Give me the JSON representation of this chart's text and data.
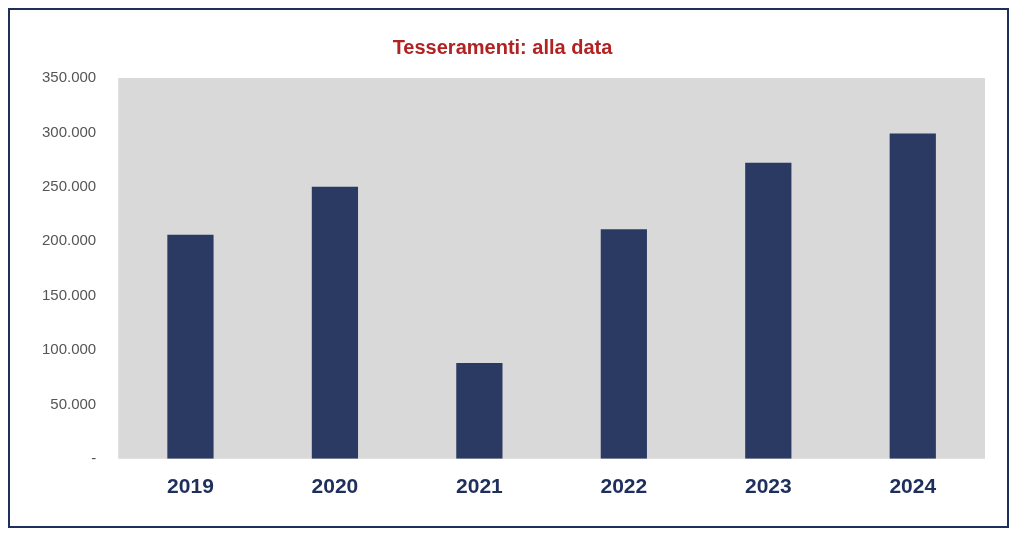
{
  "chart_data": {
    "type": "bar",
    "title": "Tesseramenti: alla data",
    "categories": [
      "2019",
      "2020",
      "2021",
      "2022",
      "2023",
      "2024"
    ],
    "values": [
      206000,
      250000,
      88000,
      211000,
      272000,
      299000
    ],
    "color": "#2b3a63",
    "ylim": [
      0,
      350000
    ],
    "yticks": [
      {
        "value": 0,
        "label": "-"
      },
      {
        "value": 50000,
        "label": "50.000"
      },
      {
        "value": 100000,
        "label": "100.000"
      },
      {
        "value": 150000,
        "label": "150.000"
      },
      {
        "value": 200000,
        "label": "200.000"
      },
      {
        "value": 250000,
        "label": "250.000"
      },
      {
        "value": 300000,
        "label": "300.000"
      },
      {
        "value": 350000,
        "label": "350.000"
      }
    ],
    "grid": false,
    "legend": false
  }
}
